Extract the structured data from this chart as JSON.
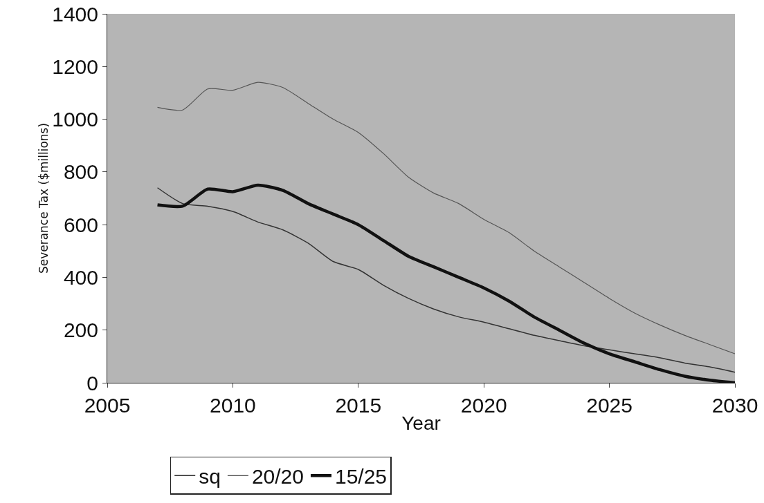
{
  "chart_data": {
    "type": "line",
    "xlabel": "Year",
    "ylabel": "Severance Tax ($millions)",
    "x": [
      2007,
      2008,
      2009,
      2010,
      2011,
      2012,
      2013,
      2014,
      2015,
      2016,
      2017,
      2018,
      2019,
      2020,
      2021,
      2022,
      2023,
      2024,
      2025,
      2026,
      2027,
      2028,
      2029,
      2030
    ],
    "series": [
      {
        "name": "sq",
        "color": "#333333",
        "values": [
          740,
          680,
          670,
          650,
          610,
          580,
          530,
          460,
          430,
          370,
          320,
          280,
          250,
          230,
          205,
          180,
          160,
          140,
          125,
          110,
          95,
          75,
          60,
          40
        ]
      },
      {
        "name": "20/20",
        "color": "#555555",
        "values": [
          1045,
          1035,
          1115,
          1110,
          1140,
          1120,
          1060,
          1000,
          950,
          870,
          780,
          720,
          680,
          620,
          570,
          500,
          440,
          380,
          320,
          265,
          220,
          180,
          145,
          110
        ]
      },
      {
        "name": "15/25",
        "color": "#111111",
        "values": [
          675,
          670,
          735,
          725,
          750,
          730,
          680,
          640,
          600,
          540,
          480,
          440,
          400,
          360,
          310,
          250,
          200,
          150,
          110,
          80,
          50,
          25,
          10,
          0
        ]
      }
    ],
    "xlim": [
      2005,
      2030
    ],
    "xticks": [
      2005,
      2010,
      2015,
      2020,
      2025,
      2030
    ],
    "ylim": [
      0,
      1400
    ],
    "yticks": [
      0,
      200,
      400,
      600,
      800,
      1000,
      1200,
      1400
    ],
    "grid": false,
    "legend": "bottom",
    "marker": "none",
    "line_style": "solid"
  }
}
